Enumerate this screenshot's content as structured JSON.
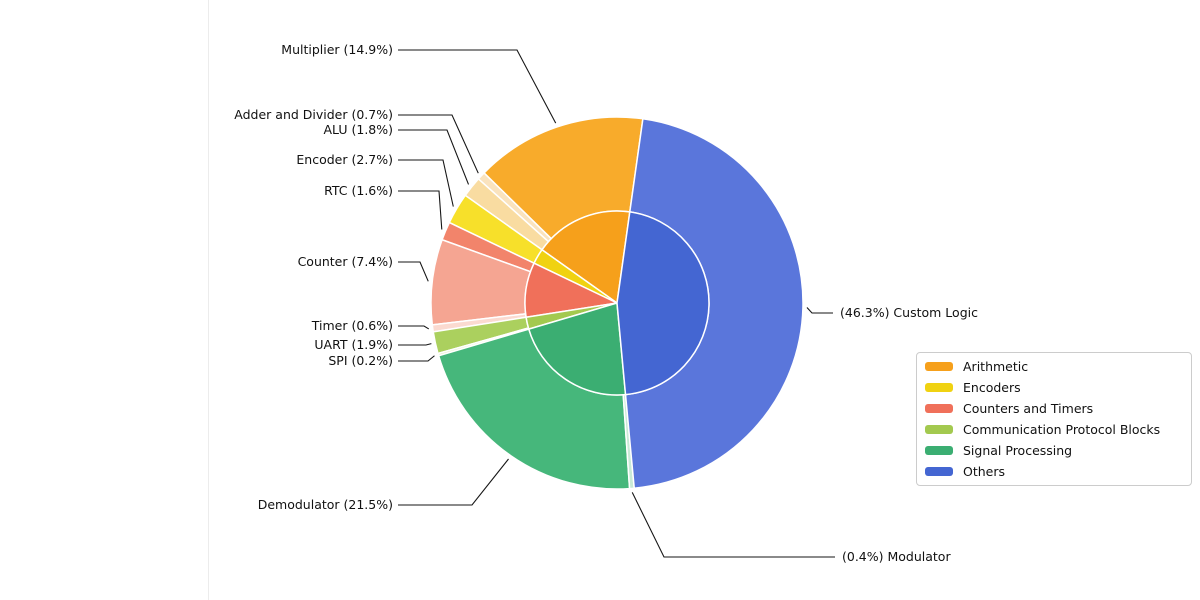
{
  "figure": {
    "background": "#ffffff",
    "leader_line_color": "#161616",
    "wedge_edge_color": "#ffffff"
  },
  "chart_data": {
    "type": "pie",
    "variant": "nested-pie (outer components ring + inner group pie)",
    "title": "",
    "start_angle_deg": 82,
    "direction": "counterclockwise",
    "legend_position": "lower right",
    "outer_slices": [
      {
        "label": "Multiplier",
        "pct": 14.9,
        "group": "Arithmetic",
        "color": "#F8AB2B",
        "display": "Multiplier (14.9%)"
      },
      {
        "label": "Adder and Divider",
        "pct": 0.7,
        "group": "Arithmetic",
        "color": "#FAE3BE",
        "display": "Adder and Divider (0.7%)"
      },
      {
        "label": "ALU",
        "pct": 1.8,
        "group": "Arithmetic",
        "color": "#F9DCA1",
        "display": "ALU (1.8%)"
      },
      {
        "label": "Encoder",
        "pct": 2.7,
        "group": "Encoders",
        "color": "#F7E02A",
        "display": "Encoder (2.7%)"
      },
      {
        "label": "RTC",
        "pct": 1.6,
        "group": "Counters and Timers",
        "color": "#F2846B",
        "display": "RTC (1.6%)"
      },
      {
        "label": "Counter",
        "pct": 7.4,
        "group": "Counters and Timers",
        "color": "#F5A592",
        "display": "Counter (7.4%)"
      },
      {
        "label": "Timer",
        "pct": 0.6,
        "group": "Counters and Timers",
        "color": "#FBDAD0",
        "display": "Timer (0.6%)"
      },
      {
        "label": "UART",
        "pct": 1.9,
        "group": "Communication Protocol Blocks",
        "color": "#ABD05E",
        "display": "UART (1.9%)"
      },
      {
        "label": "SPI",
        "pct": 0.2,
        "group": "Communication Protocol Blocks",
        "color": "#E6F1CA",
        "display": "SPI (0.2%)"
      },
      {
        "label": "Demodulator",
        "pct": 21.5,
        "group": "Signal Processing",
        "color": "#46B77B",
        "display": "Demodulator (21.5%)"
      },
      {
        "label": "Modulator",
        "pct": 0.4,
        "group": "Signal Processing",
        "color": "#C9EAD6",
        "display": "(0.4%) Modulator"
      },
      {
        "label": "Custom Logic",
        "pct": 46.3,
        "group": "Others",
        "color": "#5A76DB",
        "display": "(46.3%) Custom Logic"
      }
    ],
    "inner_groups": [
      {
        "name": "Arithmetic",
        "pct": 17.4,
        "color": "#F6A01B"
      },
      {
        "name": "Encoders",
        "pct": 2.7,
        "color": "#F0D211"
      },
      {
        "name": "Counters and Timers",
        "pct": 9.6,
        "color": "#F0705A"
      },
      {
        "name": "Communication Protocol Blocks",
        "pct": 2.1,
        "color": "#A3C94F"
      },
      {
        "name": "Signal Processing",
        "pct": 21.9,
        "color": "#3BAE72"
      },
      {
        "name": "Others",
        "pct": 46.3,
        "color": "#4466D2"
      }
    ]
  }
}
